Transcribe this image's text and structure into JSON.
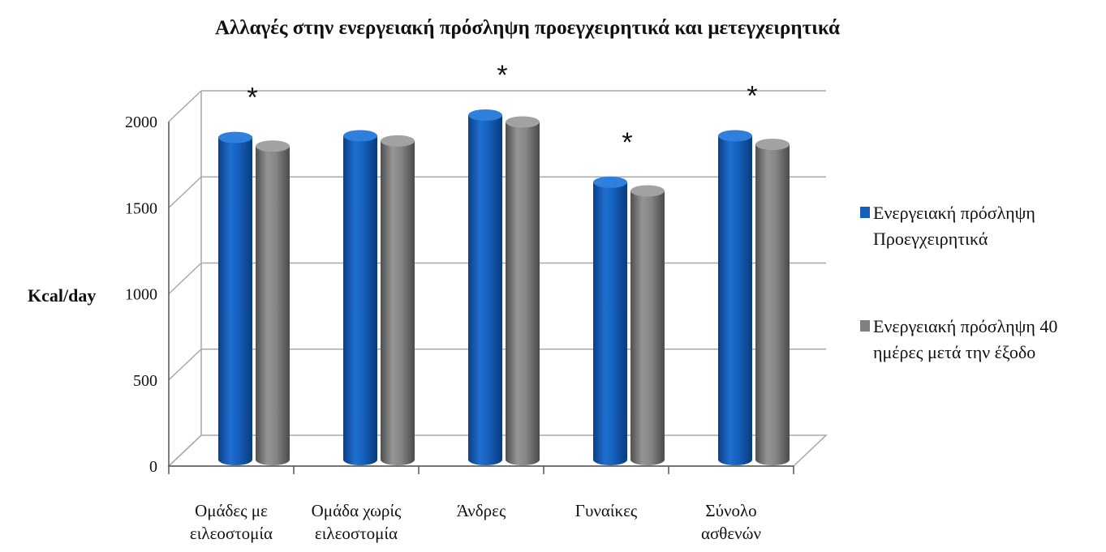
{
  "chart_data": {
    "type": "bar",
    "title": "Αλλαγές στην ενεργειακή πρόσληψη προεγχειρητικά και μετεγχειρητικά",
    "xlabel": "",
    "ylabel": "Kcal/day",
    "ylim": [
      0,
      2000
    ],
    "yticks": [
      "0",
      "500",
      "1000",
      "1500",
      "2000"
    ],
    "grid": true,
    "legend_position": "right",
    "categories": [
      [
        "Ομάδες με",
        "ειλεοστομία"
      ],
      [
        "Ομάδα χωρίς",
        "ειλεοστομία"
      ],
      [
        "Άνδρες"
      ],
      [
        "Γυναίκες"
      ],
      [
        "Σύνολο",
        "ασθενών"
      ]
    ],
    "series": [
      {
        "name": [
          "Ενεργειακή πρόσληψη",
          "Προεγχειρητικά"
        ],
        "color": "#1560bd",
        "values": [
          1870,
          1880,
          2000,
          1610,
          1880
        ]
      },
      {
        "name": [
          "Ενεργειακή πρόσληψη 40",
          "ημέρες μετά την έξοδο"
        ],
        "color": "#808080",
        "values": [
          1820,
          1850,
          1960,
          1560,
          1830
        ]
      }
    ],
    "annotations": [
      {
        "category_index": 0,
        "text": "*"
      },
      {
        "category_index": 2,
        "text": "*"
      },
      {
        "category_index": 3,
        "text": "*"
      },
      {
        "category_index": 4,
        "text": "*"
      }
    ]
  }
}
